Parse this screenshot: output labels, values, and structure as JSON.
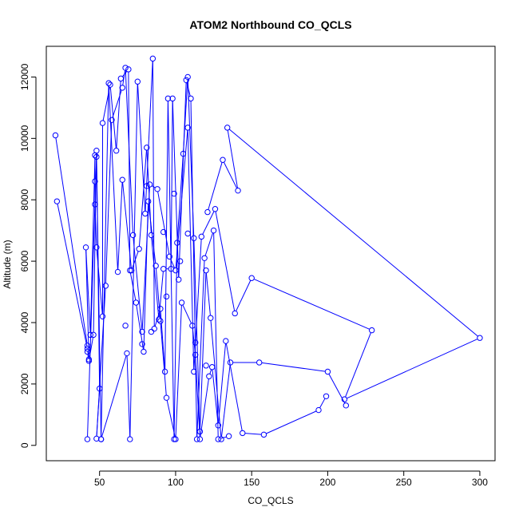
{
  "chart_data": {
    "type": "line",
    "title": "ATOM2 Northbound CO_QCLS",
    "xlabel": "CO_QCLS",
    "ylabel": "Altitude (m)",
    "xlim": [
      15,
      310
    ],
    "ylim": [
      -500,
      13000
    ],
    "x_ticks": [
      50,
      100,
      150,
      200,
      250,
      300
    ],
    "y_ticks": [
      0,
      2000,
      4000,
      6000,
      8000,
      10000,
      12000
    ],
    "x_tick_labels": [
      "50",
      "100",
      "150",
      "200",
      "250",
      "300"
    ],
    "y_tick_labels": [
      "0",
      "2000",
      "4000",
      "6000",
      "8000",
      "10000",
      "12000"
    ],
    "grid": false,
    "legend": "none",
    "series_color": "#0000ff",
    "marker": "open-circle",
    "series": [
      {
        "x": [
          22,
          42,
          43,
          41,
          44,
          47,
          47,
          47,
          48,
          52,
          52,
          57,
          61,
          64,
          69,
          70,
          74,
          79,
          82,
          87,
          90,
          94,
          100,
          104,
          111,
          113,
          116,
          122,
          124,
          128,
          133,
          144,
          158,
          194,
          199
        ],
        "y": [
          7950,
          3150,
          2800,
          6450,
          3600,
          9450,
          8600,
          7850,
          6450,
          4200,
          10500,
          11750,
          9600,
          11950,
          12250,
          5700,
          4650,
          3050,
          7950,
          5850,
          4050,
          1550,
          200,
          4650,
          3900,
          2950,
          200,
          2250,
          2550,
          650,
          3400,
          400,
          350,
          1150,
          1600
        ]
      },
      {
        "x": [
          21,
          42,
          42,
          43,
          46,
          48,
          50,
          48,
          54,
          58,
          65,
          67,
          72,
          78,
          83,
          88,
          96,
          100,
          108,
          112,
          117,
          126,
          139,
          150,
          229,
          211,
          300,
          134,
          141,
          131,
          121
        ],
        "y": [
          10100,
          3250,
          3050,
          2750,
          3600,
          9600,
          1850,
          220,
          5200,
          10600,
          11650,
          12300,
          6850,
          3700,
          8500,
          8350,
          6150,
          5700,
          10350,
          2400,
          6800,
          7700,
          4300,
          5450,
          3750,
          1500,
          3500,
          10350,
          8300,
          9300,
          7600
        ]
      },
      {
        "x": [
          42,
          48,
          51,
          68,
          70,
          75,
          80,
          85,
          86,
          90,
          93,
          95,
          99,
          101,
          105,
          108,
          112,
          116,
          120,
          123,
          130,
          136,
          155,
          200,
          212
        ],
        "y": [
          200,
          9400,
          200,
          3000,
          200,
          11850,
          7550,
          12600,
          3800,
          4450,
          2400,
          11300,
          200,
          6600,
          9500,
          12000,
          6750,
          450,
          5700,
          4150,
          200,
          2700,
          2700,
          2400,
          1300
        ]
      },
      {
        "x": [
          51,
          56,
          62,
          65,
          71,
          76,
          81,
          84,
          89,
          92,
          97,
          98,
          102,
          107,
          110,
          114,
          119,
          125,
          128,
          135
        ],
        "y": [
          200,
          11800,
          5650,
          8650,
          5700,
          6400,
          9700,
          6850,
          4100,
          5750,
          5750,
          11300,
          5400,
          11900,
          11300,
          200,
          6100,
          7000,
          200,
          300
        ]
      }
    ],
    "points_unconnected": {
      "x": [
        67,
        78,
        81,
        84,
        92,
        94,
        99,
        103,
        108,
        113,
        120
      ],
      "y": [
        3900,
        3300,
        8450,
        3700,
        6950,
        4850,
        8200,
        6000,
        6900,
        3350,
        2600
      ]
    }
  }
}
